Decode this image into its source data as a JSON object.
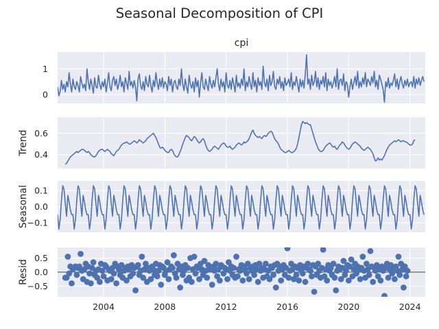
{
  "title": "Seasonal Decomposition of CPI",
  "chart_data": [
    {
      "type": "line",
      "panel": "observed",
      "title": "cpi",
      "ylabel": "",
      "x_range": [
        "2001-01",
        "2024-12"
      ],
      "ylim": [
        -0.35,
        1.65
      ],
      "yticks": [
        0,
        1
      ],
      "ytick_labels": [
        "0",
        "1"
      ],
      "series": [
        {
          "name": "",
          "values": [
            0.3,
            -0.05,
            0.12,
            0.55,
            0.2,
            0.4,
            0.1,
            0.5,
            0.3,
            0.85,
            0.4,
            0.1,
            0.6,
            0.3,
            0.2,
            0.5,
            0.35,
            0.1,
            0.7,
            0.45,
            0.25,
            0.4,
            0.15,
            1.0,
            0.5,
            0.2,
            0.6,
            0.35,
            0.05,
            0.65,
            0.3,
            0.25,
            0.75,
            0.4,
            0.2,
            0.5,
            0.3,
            0.6,
            0.1,
            0.45,
            0.85,
            0.3,
            0.15,
            0.55,
            0.7,
            0.35,
            0.6,
            0.2,
            0.4,
            0.75,
            0.3,
            0.5,
            0.1,
            0.65,
            0.45,
            0.2,
            0.9,
            0.35,
            0.5,
            0.25,
            0.55,
            0.3,
            -0.25,
            0.6,
            0.8,
            0.35,
            0.2,
            0.5,
            0.15,
            0.7,
            0.4,
            0.3,
            0.75,
            0.35,
            0.1,
            0.55,
            0.3,
            0.85,
            0.45,
            0.2,
            0.6,
            0.3,
            0.65,
            0.25,
            0.5,
            0.4,
            0.15,
            0.7,
            0.35,
            0.6,
            0.1,
            0.45,
            0.55,
            0.3,
            0.2,
            0.6,
            0.35,
            1.0,
            0.4,
            0.15,
            0.6,
            0.3,
            0.05,
            0.75,
            0.4,
            0.25,
            0.5,
            0.1,
            0.65,
            0.3,
            0.55,
            -0.1,
            0.45,
            0.85,
            0.3,
            0.2,
            0.6,
            0.35,
            0.15,
            0.7,
            0.4,
            0.25,
            0.55,
            0.3,
            0.65,
            1.0,
            0.4,
            0.15,
            0.6,
            0.3,
            0.5,
            0.1,
            0.85,
            0.35,
            0.25,
            0.55,
            0.2,
            0.65,
            0.4,
            0.1,
            0.75,
            0.3,
            0.45,
            0.25,
            0.6,
            0.35,
            1.0,
            0.15,
            0.5,
            0.3,
            0.7,
            0.4,
            0.2,
            0.85,
            0.3,
            0.55,
            0.1,
            0.65,
            0.35,
            0.5,
            0.2,
            1.1,
            0.45,
            0.3,
            0.6,
            0.15,
            0.75,
            0.35,
            0.5,
            0.9,
            0.3,
            0.2,
            0.6,
            0.4,
            0.7,
            0.25,
            0.5,
            0.15,
            0.65,
            0.35,
            0.45,
            0.6,
            0.3,
            0.85,
            0.2,
            0.5,
            0.35,
            0.7,
            0.4,
            0.1,
            0.6,
            0.3,
            0.55,
            0.25,
            0.8,
            1.55,
            0.4,
            0.6,
            0.2,
            0.75,
            0.35,
            0.5,
            0.9,
            0.3,
            0.65,
            0.2,
            0.55,
            0.4,
            0.7,
            0.3,
            0.85,
            0.15,
            0.6,
            0.35,
            0.5,
            0.25,
            0.45,
            0.7,
            0.3,
            1.0,
            0.2,
            0.55,
            0.6,
            0.35,
            0.8,
            0.15,
            0.5,
            0.4,
            -0.1,
            0.3,
            0.6,
            0.2,
            0.45,
            0.7,
            0.35,
            0.9,
            0.25,
            0.5,
            0.3,
            0.65,
            0.4,
            0.85,
            0.3,
            0.6,
            0.5,
            0.35,
            0.7,
            0.45,
            0.9,
            0.3,
            0.55,
            0.2,
            0.75,
            0.6,
            0.4,
            0.2,
            -0.3,
            0.5,
            0.3,
            0.65,
            0.25,
            0.45,
            0.35,
            0.55,
            0.8,
            0.3,
            0.6,
            0.2,
            0.5,
            0.7,
            0.4,
            0.25,
            0.55,
            0.35,
            0.6,
            0.3,
            0.45,
            0.5,
            0.3,
            0.7,
            0.25,
            0.6,
            0.4,
            0.65,
            0.35,
            0.55,
            0.7,
            0.5
          ]
        }
      ]
    },
    {
      "type": "line",
      "panel": "trend",
      "ylabel": "Trend",
      "x_range": [
        "2001-01",
        "2024-12"
      ],
      "ylim": [
        0.27,
        0.75
      ],
      "yticks": [
        0.4,
        0.6
      ],
      "ytick_labels": [
        "0.4",
        "0.6"
      ],
      "series": [
        {
          "name": "",
          "values": [
            null,
            null,
            null,
            null,
            null,
            null,
            0.31,
            0.32,
            0.34,
            0.36,
            0.38,
            0.39,
            0.4,
            0.41,
            0.42,
            0.43,
            0.42,
            0.43,
            0.44,
            0.45,
            0.45,
            0.44,
            0.43,
            0.42,
            0.43,
            0.42,
            0.4,
            0.39,
            0.38,
            0.38,
            0.39,
            0.41,
            0.43,
            0.44,
            0.45,
            0.45,
            0.44,
            0.43,
            0.44,
            0.45,
            0.44,
            0.43,
            0.41,
            0.4,
            0.39,
            0.41,
            0.43,
            0.44,
            0.45,
            0.47,
            0.49,
            0.5,
            0.51,
            0.51,
            0.52,
            0.51,
            0.5,
            0.5,
            0.51,
            0.52,
            0.53,
            0.52,
            0.51,
            0.52,
            0.54,
            0.53,
            0.52,
            0.51,
            0.52,
            0.53,
            0.55,
            0.56,
            0.57,
            0.58,
            0.59,
            0.6,
            0.58,
            0.56,
            0.53,
            0.5,
            0.47,
            0.46,
            0.47,
            0.46,
            0.44,
            0.43,
            0.42,
            0.42,
            0.44,
            0.45,
            0.44,
            0.41,
            0.39,
            0.38,
            0.38,
            0.4,
            0.43,
            0.46,
            0.5,
            0.53,
            0.56,
            0.58,
            0.57,
            0.56,
            0.54,
            0.53,
            0.55,
            0.57,
            0.56,
            0.54,
            0.52,
            0.51,
            0.52,
            0.54,
            0.55,
            0.53,
            0.49,
            0.46,
            0.44,
            0.43,
            0.44,
            0.45,
            0.47,
            0.48,
            0.47,
            0.46,
            0.45,
            0.47,
            0.49,
            0.5,
            0.51,
            0.5,
            0.48,
            0.47,
            0.47,
            0.48,
            0.46,
            0.45,
            0.46,
            0.47,
            0.49,
            0.5,
            0.51,
            0.5,
            0.49,
            0.5,
            0.52,
            0.51,
            0.52,
            0.53,
            0.55,
            0.58,
            0.61,
            0.63,
            0.6,
            0.58,
            0.57,
            0.56,
            0.57,
            0.56,
            0.55,
            0.57,
            0.58,
            0.57,
            0.58,
            0.6,
            0.61,
            0.62,
            0.61,
            0.58,
            0.55,
            0.53,
            0.52,
            0.5,
            0.47,
            0.45,
            0.44,
            0.43,
            0.42,
            0.42,
            0.43,
            0.44,
            0.43,
            0.42,
            0.42,
            0.43,
            0.44,
            0.46,
            0.5,
            0.56,
            0.62,
            0.68,
            0.71,
            0.7,
            0.69,
            0.7,
            0.69,
            0.68,
            0.68,
            0.64,
            0.6,
            0.56,
            0.52,
            0.49,
            0.46,
            0.44,
            0.43,
            0.43,
            0.44,
            0.46,
            0.48,
            0.49,
            0.5,
            0.51,
            0.5,
            0.48,
            0.47,
            0.48,
            0.46,
            0.45,
            0.47,
            0.49,
            0.5,
            0.52,
            0.51,
            0.49,
            0.47,
            0.46,
            0.45,
            0.46,
            0.48,
            0.5,
            0.51,
            0.52,
            0.51,
            0.5,
            0.49,
            0.48,
            0.46,
            0.45,
            0.44,
            0.45,
            0.46,
            0.47,
            0.46,
            0.45,
            0.43,
            0.41,
            0.37,
            0.34,
            0.35,
            0.37,
            0.35,
            0.36,
            0.35,
            0.37,
            0.39,
            0.42,
            0.45,
            0.47,
            0.49,
            0.5,
            0.51,
            0.52,
            0.53,
            0.52,
            0.53,
            0.54,
            0.53,
            0.52,
            0.53,
            0.53,
            0.52,
            0.52,
            0.51,
            0.5,
            0.49,
            0.49,
            0.5,
            0.53,
            0.54,
            null,
            null,
            null,
            null,
            null,
            null,
            null
          ]
        }
      ]
    },
    {
      "type": "line",
      "panel": "seasonal",
      "ylabel": "Seasonal",
      "x_range": [
        "2001-01",
        "2024-12"
      ],
      "ylim": [
        -0.16,
        0.16
      ],
      "yticks": [
        -0.1,
        0.0,
        0.1
      ],
      "ytick_labels": [
        "−0.1",
        "0.0",
        "0.1"
      ],
      "period": 12,
      "pattern": [
        -0.05,
        -0.14,
        -0.08,
        0.04,
        0.13,
        0.11,
        0.02,
        -0.06,
        0.07,
        0.03,
        -0.02,
        -0.05
      ]
    },
    {
      "type": "scatter",
      "panel": "resid",
      "ylabel": "Resid",
      "x_range": [
        "2001-01",
        "2024-12"
      ],
      "ylim": [
        -0.88,
        0.88
      ],
      "yticks": [
        -0.5,
        0.0,
        0.5
      ],
      "ytick_labels": [
        "−0.5",
        "0.0",
        "0.5"
      ],
      "series": [
        {
          "name": "",
          "values": [
            null,
            null,
            null,
            null,
            null,
            null,
            -0.2,
            -0.2,
            0.55,
            -0.05,
            0.2,
            -0.4,
            0.1,
            0.15,
            0.2,
            -0.1,
            0.15,
            0.2,
            0.65,
            0.05,
            -0.25,
            0.1,
            0.3,
            -0.35,
            0.2,
            -0.05,
            -0.4,
            0.15,
            0.35,
            -0.1,
            0.05,
            -0.2,
            0.1,
            -0.35,
            0.3,
            0.05,
            -0.15,
            0.25,
            0.2,
            -0.3,
            0.1,
            0.05,
            -0.25,
            0.15,
            -0.05,
            0.3,
            -0.4,
            0.2,
            0.1,
            -0.1,
            0.25,
            -0.2,
            0.05,
            0.15,
            -0.3,
            0.2,
            0.1,
            -0.15,
            0.25,
            -0.05,
            0.15,
            -0.65,
            0.2,
            0.25,
            -0.1,
            0.05,
            0.55,
            -0.2,
            0.1,
            0.3,
            -0.35,
            0.15,
            0.05,
            -0.25,
            0.2,
            0.1,
            -0.1,
            0.3,
            -0.15,
            0.05,
            0.25,
            -0.45,
            0.2,
            0.15,
            -0.1,
            0.05,
            0.35,
            -0.25,
            0.1,
            0.2,
            0.15,
            0.6,
            -0.05,
            -0.2,
            0.3,
            0.1,
            -0.55,
            0.2,
            -0.1,
            0.05,
            0.25,
            -0.3,
            0.15,
            -0.2,
            0.5,
            -0.35,
            0.1,
            0.55,
            -0.05,
            0.2,
            0.15,
            -0.25,
            0.3,
            0.1,
            -0.1,
            0.4,
            0.05,
            -0.2,
            0.25,
            0.1,
            0.15,
            -0.45,
            0.2,
            0.05,
            0.3,
            -0.15,
            0.1,
            -0.3,
            0.25,
            0.2,
            -0.05,
            0.15,
            0.1,
            -0.25,
            0.35,
            0.05,
            0.2,
            -0.1,
            0.15,
            -0.2,
            0.55,
            -0.15,
            0.1,
            0.05,
            0.25,
            -0.3,
            0.2,
            0.1,
            -0.05,
            0.3,
            -0.25,
            0.15,
            0.05,
            0.2,
            -0.1,
            0.25,
            0.1,
            -0.35,
            0.3,
            0.05,
            0.15,
            -0.2,
            0.1,
            0.3,
            -0.15,
            0.05,
            -0.25,
            0.2,
            0.15,
            -0.1,
            0.25,
            -0.55,
            0.3,
            0.05,
            0.2,
            -0.3,
            0.1,
            0.25,
            -0.1,
            0.15,
            0.85,
            -0.2,
            0.05,
            0.3,
            0.1,
            -0.25,
            0.2,
            -0.1,
            0.15,
            -0.3,
            0.25,
            0.05,
            -0.05,
            0.2,
            -0.35,
            0.15,
            0.3,
            0.1,
            0.05,
            -0.15,
            0.25,
            -0.7,
            0.2,
            -0.1,
            0.3,
            0.05,
            -0.2,
            0.15,
            0.8,
            -0.15,
            0.1,
            -0.3,
            0.25,
            0.05,
            0.15,
            -0.1,
            0.3,
            -0.2,
            -0.65,
            0.05,
            0.2,
            0.1,
            -0.25,
            0.15,
            0.4,
            -0.1,
            0.05,
            0.25,
            -0.3,
            0.2,
            0.45,
            -0.15,
            0.1,
            0.3,
            -0.05,
            0.2,
            0.1,
            -0.25,
            0.15,
            0.55,
            0.05,
            -0.2,
            0.3,
            0.1,
            -0.1,
            0.75,
            0.2,
            -0.35,
            0.15,
            0.05,
            0.25,
            -0.15,
            0.1,
            -0.3,
            0.2,
            0.05,
            -0.85,
            0.15,
            0.3,
            -0.2,
            0.1,
            0.25,
            -0.05,
            0.15,
            -0.25,
            0.2,
            0.05,
            0.55,
            -0.1,
            0.3,
            0.1,
            -0.55,
            0.2,
            -0.15,
            0.05,
            null,
            null,
            null,
            null,
            null,
            null
          ]
        }
      ]
    }
  ],
  "x_axis": {
    "ticks": [
      2004,
      2008,
      2012,
      2016,
      2020,
      2024
    ],
    "tick_labels": [
      "2004",
      "2008",
      "2012",
      "2016",
      "2020",
      "2024"
    ]
  },
  "colors": {
    "series": "#4c72b0",
    "panel_background": "#eaeaf2",
    "grid": "#ffffff",
    "text": "#262626"
  },
  "grid": true
}
